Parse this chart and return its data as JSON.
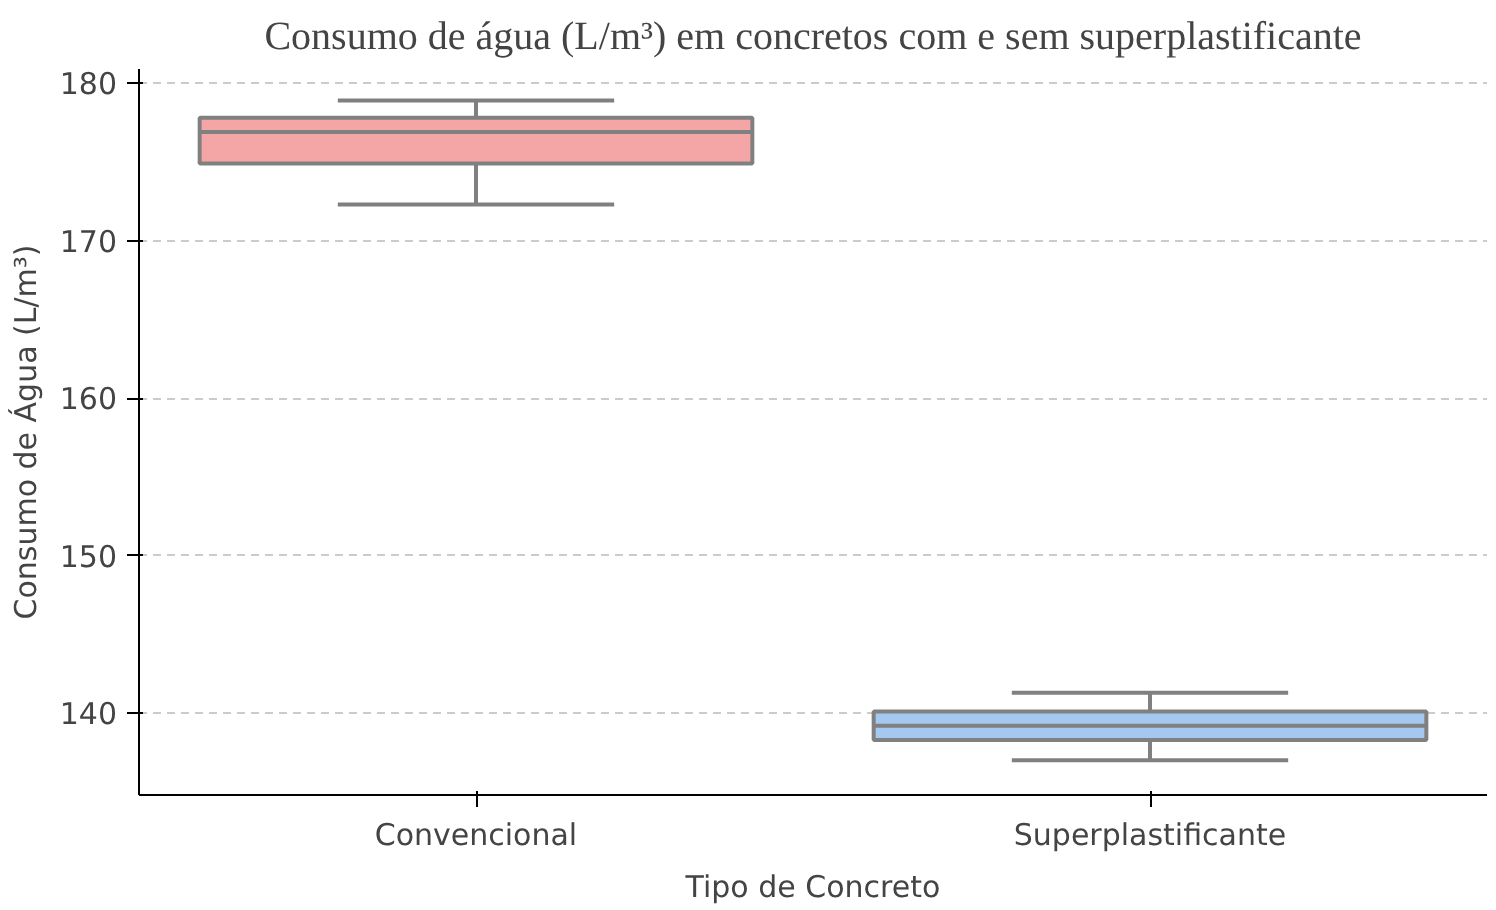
{
  "chart_data": {
    "type": "box",
    "title": "Consumo de água (L/m³) em concretos com e sem superplastificante",
    "xlabel": "Tipo de Concreto",
    "ylabel": "Consumo de Água (L/m³)",
    "categories": [
      "Convencional",
      "Superplastificante"
    ],
    "boxes": [
      {
        "low": 172.3,
        "q1": 174.9,
        "median": 176.9,
        "q3": 177.8,
        "high": 178.9
      },
      {
        "low": 137.0,
        "q1": 138.3,
        "median": 139.2,
        "q3": 140.1,
        "high": 141.3
      }
    ],
    "colors": [
      "#f4a6a6",
      "#a4c8f0"
    ],
    "ylim": [
      134.8,
      180.9
    ],
    "yticks": [
      140,
      150,
      160,
      170,
      180
    ],
    "grid": "y"
  }
}
